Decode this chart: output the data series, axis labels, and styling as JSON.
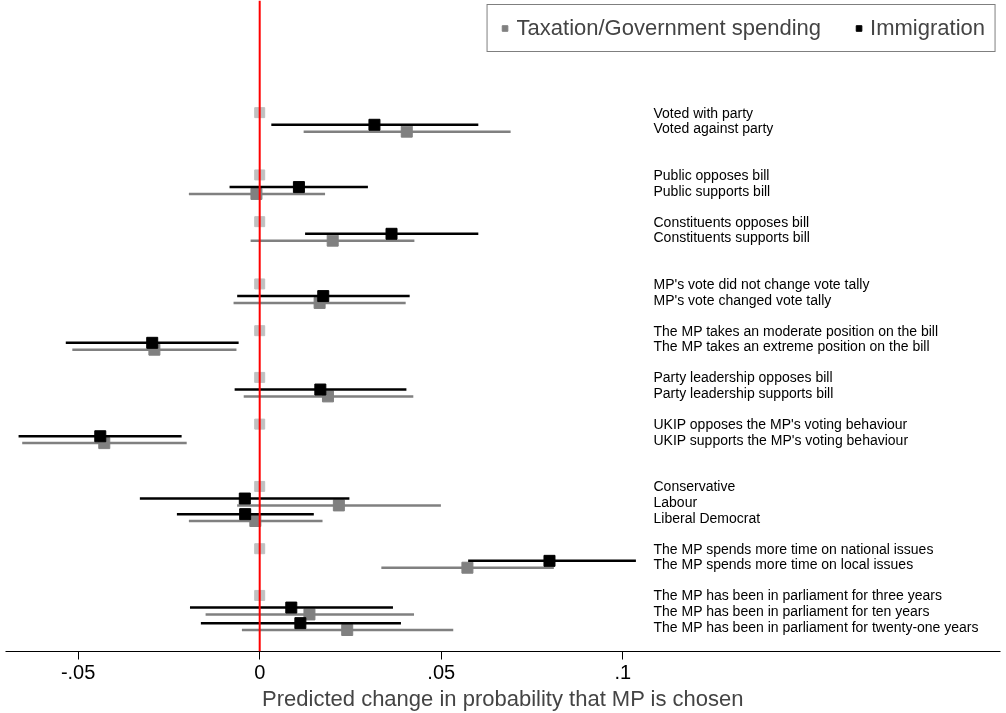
{
  "chart_data": {
    "type": "scatter",
    "orientation": "horizontal",
    "xlabel": "Predicted change in probability that MP is chosen",
    "categories": [
      "Voted with party",
      "Voted against party",
      null,
      null,
      "Public opposes bill",
      "Public supports bill",
      null,
      "Constituents opposes bill",
      "Constituents supports bill",
      null,
      null,
      "MP's vote did not change vote tally",
      "MP's vote changed vote tally",
      null,
      "The MP takes an moderate position on the bill",
      "The MP takes an extreme position on the bill",
      null,
      "Party leadership opposes bill",
      "Party leadership supports bill",
      null,
      "UKIP opposes the MP's voting behaviour",
      "UKIP supports the MP's voting behaviour",
      null,
      null,
      "Conservative",
      "Labour",
      "Liberal Democrat",
      null,
      "The MP spends more time on national issues",
      "The MP spends more time on local issues",
      null,
      "The MP has been in parliament for three years",
      "The MP has been in parliament for ten years",
      "The MP has been in parliament for twenty-one years"
    ],
    "xlim": [
      -0.07,
      0.204
    ],
    "xticks": [
      {
        "value": -0.05,
        "label": "-.05"
      },
      0,
      {
        "value": 0.05,
        "label": ".05"
      },
      {
        "value": 0.1,
        "label": ".1"
      }
    ],
    "marker": "square",
    "legend": "top right",
    "grid": false,
    "ref_lines": [
      {
        "axis": "x",
        "value": 0,
        "color": "#ff0000"
      }
    ],
    "series": [
      {
        "name": "Taxation/Government spending",
        "color": "#808080",
        "values": [
          null,
          0.0405,
          null,
          null,
          null,
          -0.0009,
          null,
          null,
          0.0201,
          null,
          null,
          null,
          0.0165,
          null,
          null,
          -0.029,
          null,
          null,
          0.0188,
          null,
          null,
          -0.0428,
          null,
          null,
          null,
          0.0218,
          -0.0012,
          null,
          null,
          0.0572,
          null,
          null,
          0.0137,
          0.0241
        ],
        "errors": [
          null,
          [
            0.0121,
            0.0691
          ],
          null,
          null,
          null,
          [
            -0.0195,
            0.018
          ],
          null,
          null,
          [
            -0.0025,
            0.0426
          ],
          null,
          null,
          null,
          [
            -0.0072,
            0.0402
          ],
          null,
          null,
          [
            -0.0516,
            -0.0064
          ],
          null,
          null,
          [
            -0.0044,
            0.0423
          ],
          null,
          null,
          [
            -0.0654,
            -0.0201
          ],
          null,
          null,
          null,
          [
            -0.0062,
            0.0499
          ],
          [
            -0.0195,
            0.0173
          ],
          null,
          null,
          [
            0.0335,
            0.081
          ],
          null,
          null,
          [
            -0.0149,
            0.0425
          ],
          [
            -0.0049,
            0.0533
          ]
        ]
      },
      {
        "name": "Immigration",
        "color": "#000000",
        "values": [
          null,
          0.0316,
          null,
          null,
          null,
          0.0108,
          null,
          null,
          0.0363,
          null,
          null,
          null,
          0.0175,
          null,
          null,
          -0.0296,
          null,
          null,
          0.0167,
          null,
          null,
          -0.0439,
          null,
          null,
          null,
          -0.0041,
          -0.004,
          null,
          null,
          0.0798,
          null,
          null,
          0.0087,
          0.0112
        ],
        "errors": [
          null,
          [
            0.0032,
            0.0602
          ],
          null,
          null,
          null,
          [
            -0.0083,
            0.0298
          ],
          null,
          null,
          [
            0.0125,
            0.0602
          ],
          null,
          null,
          null,
          [
            -0.0062,
            0.0413
          ],
          null,
          null,
          [
            -0.0534,
            -0.0058
          ],
          null,
          null,
          [
            -0.0069,
            0.0404
          ],
          null,
          null,
          [
            -0.0664,
            -0.0215
          ],
          null,
          null,
          null,
          [
            -0.033,
            0.0247
          ],
          [
            -0.0228,
            0.0149
          ],
          null,
          null,
          [
            0.0574,
            0.1036
          ],
          null,
          null,
          [
            -0.0192,
            0.0367
          ],
          [
            -0.0162,
            0.0389
          ]
        ]
      },
      {
        "color": "#c0c0c0",
        "values": [
          0,
          null,
          null,
          null,
          0,
          null,
          null,
          0,
          null,
          null,
          null,
          0,
          null,
          null,
          0,
          null,
          null,
          0,
          null,
          null,
          0,
          null,
          null,
          null,
          0,
          null,
          null,
          null,
          0,
          null,
          null,
          0,
          null,
          null
        ]
      }
    ]
  }
}
